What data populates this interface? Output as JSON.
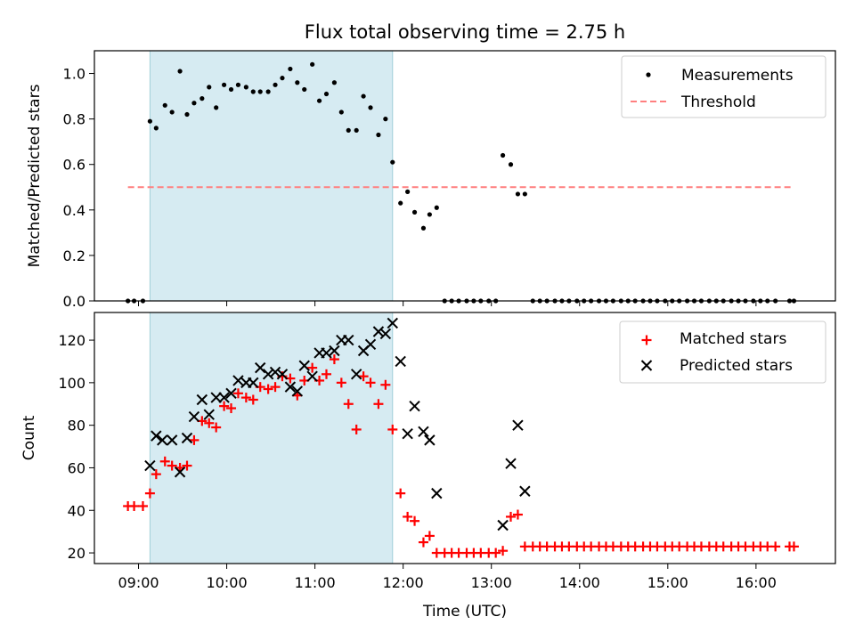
{
  "figure": {
    "title": "Flux total observing time = 2.75 h",
    "xlabel": "Time (UTC)",
    "x_ticks": [
      {
        "t": 9,
        "label": "09:00"
      },
      {
        "t": 10,
        "label": "10:00"
      },
      {
        "t": 11,
        "label": "11:00"
      },
      {
        "t": 12,
        "label": "12:00"
      },
      {
        "t": 13,
        "label": "13:00"
      },
      {
        "t": 14,
        "label": "14:00"
      },
      {
        "t": 15,
        "label": "15:00"
      },
      {
        "t": 16,
        "label": "16:00"
      }
    ]
  },
  "chart_data": [
    {
      "type": "scatter",
      "ylabel": "Matched/Predicted stars",
      "xlim": [
        8.5,
        16.9
      ],
      "ylim": [
        0,
        1.1
      ],
      "y_ticks": [
        0,
        0.2,
        0.4,
        0.6,
        0.8,
        1.0
      ],
      "y_tick_labels": [
        "0.0",
        "0.2",
        "0.4",
        "0.6",
        "0.8",
        "1.0"
      ],
      "shaded_x": [
        9.13,
        11.88
      ],
      "shade_color": "#add8e6",
      "legend_position": "upper right",
      "grid": false,
      "threshold": {
        "name": "Threshold",
        "y": 0.5,
        "x": [
          8.88,
          16.43
        ],
        "color": "#ff7f7f"
      },
      "series": [
        {
          "name": "Measurements",
          "color": "#000000",
          "marker": "dot",
          "x": [
            8.88,
            8.95,
            9.05,
            9.13,
            9.2,
            9.3,
            9.38,
            9.47,
            9.55,
            9.63,
            9.72,
            9.8,
            9.88,
            9.97,
            10.05,
            10.13,
            10.22,
            10.3,
            10.38,
            10.47,
            10.55,
            10.63,
            10.72,
            10.8,
            10.88,
            10.97,
            11.05,
            11.13,
            11.22,
            11.3,
            11.38,
            11.47,
            11.55,
            11.63,
            11.72,
            11.8,
            11.88,
            11.97,
            12.05,
            12.13,
            12.23,
            12.3,
            12.38,
            12.47,
            12.55,
            12.63,
            12.72,
            12.8,
            12.88,
            12.97,
            13.05,
            13.13,
            13.22,
            13.3,
            13.38,
            13.47,
            13.55,
            13.63,
            13.72,
            13.8,
            13.88,
            13.97,
            14.05,
            14.13,
            14.22,
            14.3,
            14.38,
            14.47,
            14.55,
            14.63,
            14.72,
            14.8,
            14.88,
            14.97,
            15.05,
            15.13,
            15.22,
            15.3,
            15.38,
            15.47,
            15.55,
            15.63,
            15.72,
            15.8,
            15.88,
            15.97,
            16.05,
            16.13,
            16.22,
            16.38,
            16.43
          ],
          "y": [
            0,
            0,
            0,
            0.79,
            0.76,
            0.86,
            0.83,
            1.01,
            0.82,
            0.87,
            0.89,
            0.94,
            0.85,
            0.95,
            0.93,
            0.95,
            0.94,
            0.92,
            0.92,
            0.92,
            0.95,
            0.98,
            1.02,
            0.96,
            0.93,
            1.04,
            0.88,
            0.91,
            0.96,
            0.83,
            0.75,
            0.75,
            0.9,
            0.85,
            0.73,
            0.8,
            0.61,
            0.43,
            0.48,
            0.39,
            0.32,
            0.38,
            0.41,
            0,
            0,
            0,
            0,
            0,
            0,
            0,
            0,
            0.64,
            0.6,
            0.47,
            0.47,
            0,
            0,
            0,
            0,
            0,
            0,
            0,
            0,
            0,
            0,
            0,
            0,
            0,
            0,
            0,
            0,
            0,
            0,
            0,
            0,
            0,
            0,
            0,
            0,
            0,
            0,
            0,
            0,
            0,
            0,
            0,
            0,
            0,
            0,
            0,
            0
          ]
        }
      ]
    },
    {
      "type": "scatter",
      "ylabel": "Count",
      "xlim": [
        8.5,
        16.9
      ],
      "ylim": [
        15,
        133
      ],
      "y_ticks": [
        20,
        40,
        60,
        80,
        100,
        120
      ],
      "y_tick_labels": [
        "20",
        "40",
        "60",
        "80",
        "100",
        "120"
      ],
      "shaded_x": [
        9.13,
        11.88
      ],
      "shade_color": "#add8e6",
      "legend_position": "upper right",
      "grid": false,
      "series": [
        {
          "name": "Matched stars",
          "color": "#ff0000",
          "marker": "plus",
          "x": [
            8.88,
            8.95,
            9.05,
            9.13,
            9.2,
            9.3,
            9.38,
            9.47,
            9.55,
            9.63,
            9.72,
            9.8,
            9.88,
            9.97,
            10.05,
            10.13,
            10.22,
            10.3,
            10.38,
            10.47,
            10.55,
            10.63,
            10.72,
            10.8,
            10.88,
            10.97,
            11.05,
            11.13,
            11.22,
            11.3,
            11.38,
            11.47,
            11.55,
            11.63,
            11.72,
            11.8,
            11.88,
            11.97,
            12.05,
            12.13,
            12.23,
            12.3,
            12.38,
            12.47,
            12.55,
            12.63,
            12.72,
            12.8,
            12.88,
            12.97,
            13.05,
            13.13,
            13.22,
            13.3,
            13.38,
            13.47,
            13.55,
            13.63,
            13.72,
            13.8,
            13.88,
            13.97,
            14.05,
            14.13,
            14.22,
            14.3,
            14.38,
            14.47,
            14.55,
            14.63,
            14.72,
            14.8,
            14.88,
            14.97,
            15.05,
            15.13,
            15.22,
            15.3,
            15.38,
            15.47,
            15.55,
            15.63,
            15.72,
            15.8,
            15.88,
            15.97,
            16.05,
            16.13,
            16.22,
            16.38,
            16.43
          ],
          "y": [
            42,
            42,
            42,
            48,
            57,
            63,
            61,
            60,
            61,
            73,
            82,
            81,
            79,
            89,
            88,
            95,
            93,
            92,
            98,
            97,
            98,
            103,
            102,
            94,
            101,
            107,
            101,
            104,
            111,
            100,
            90,
            78,
            103,
            100,
            90,
            99,
            78,
            48,
            37,
            35,
            25,
            28,
            20,
            20,
            20,
            20,
            20,
            20,
            20,
            20,
            20,
            21,
            37,
            38,
            23,
            23,
            23,
            23,
            23,
            23,
            23,
            23,
            23,
            23,
            23,
            23,
            23,
            23,
            23,
            23,
            23,
            23,
            23,
            23,
            23,
            23,
            23,
            23,
            23,
            23,
            23,
            23,
            23,
            23,
            23,
            23,
            23,
            23,
            23,
            23,
            23
          ]
        },
        {
          "name": "Predicted stars",
          "color": "#000000",
          "marker": "x",
          "x": [
            9.13,
            9.2,
            9.27,
            9.38,
            9.47,
            9.55,
            9.63,
            9.72,
            9.8,
            9.88,
            9.97,
            10.05,
            10.13,
            10.22,
            10.3,
            10.38,
            10.47,
            10.55,
            10.63,
            10.72,
            10.8,
            10.88,
            10.97,
            11.05,
            11.13,
            11.22,
            11.3,
            11.38,
            11.47,
            11.55,
            11.63,
            11.72,
            11.8,
            11.88,
            11.97,
            12.05,
            12.13,
            12.23,
            12.3,
            12.38,
            13.13,
            13.22,
            13.3,
            13.38
          ],
          "y": [
            61,
            75,
            73,
            73,
            58,
            74,
            84,
            92,
            85,
            93,
            93,
            95,
            101,
            100,
            100,
            107,
            104,
            105,
            104,
            98,
            96,
            108,
            103,
            114,
            114,
            115,
            120,
            120,
            104,
            115,
            118,
            124,
            123,
            128,
            110,
            76,
            89,
            77,
            73,
            48,
            33,
            62,
            80,
            49
          ]
        }
      ]
    }
  ]
}
